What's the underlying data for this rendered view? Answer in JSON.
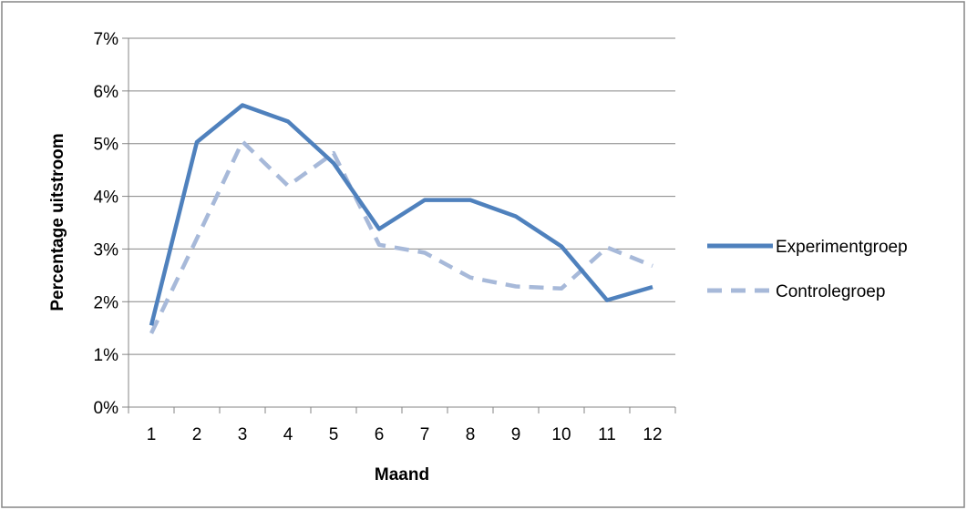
{
  "chart_data": {
    "type": "line",
    "title": "",
    "xlabel": "Maand",
    "ylabel": "Percentage uitstroom",
    "categories": [
      "1",
      "2",
      "3",
      "4",
      "5",
      "6",
      "7",
      "8",
      "9",
      "10",
      "11",
      "12"
    ],
    "ylim": [
      0,
      7
    ],
    "yticks": [
      "0%",
      "1%",
      "2%",
      "3%",
      "4%",
      "5%",
      "6%",
      "7%"
    ],
    "grid": true,
    "legend_position": "right",
    "series": [
      {
        "name": "Experimentgroep",
        "color": "#4F81BD",
        "style": "solid",
        "values": [
          1.55,
          5.03,
          5.73,
          5.42,
          4.63,
          3.38,
          3.93,
          3.93,
          3.62,
          3.05,
          2.03,
          2.28
        ]
      },
      {
        "name": "Controlegroep",
        "color": "#A7B9D9",
        "style": "dashed",
        "values": [
          1.4,
          3.2,
          5.04,
          4.2,
          4.82,
          3.08,
          2.93,
          2.46,
          2.29,
          2.25,
          3.03,
          2.68
        ]
      }
    ]
  }
}
